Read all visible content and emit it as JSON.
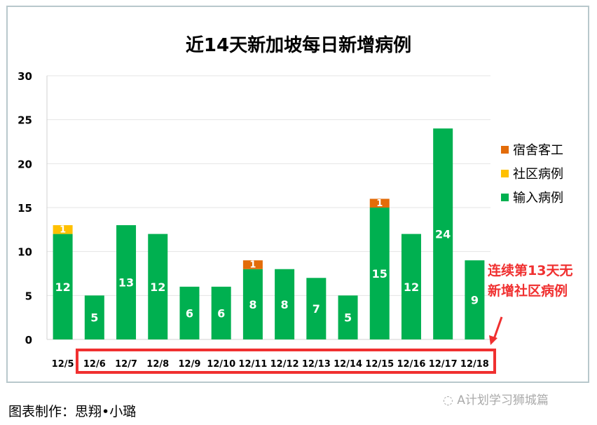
{
  "chart_data": {
    "type": "bar",
    "stacked": true,
    "title": "近14天新加坡每日新增病例",
    "categories": [
      "12/5",
      "12/6",
      "12/7",
      "12/8",
      "12/9",
      "12/10",
      "12/11",
      "12/12",
      "12/13",
      "12/14",
      "12/15",
      "12/16",
      "12/17",
      "12/18"
    ],
    "series": [
      {
        "name": "输入病例",
        "color": "#00b050",
        "values": [
          12,
          5,
          13,
          12,
          6,
          6,
          8,
          8,
          7,
          5,
          15,
          12,
          24,
          9
        ]
      },
      {
        "name": "社区病例",
        "color": "#ffc000",
        "values": [
          1,
          0,
          0,
          0,
          0,
          0,
          0,
          0,
          0,
          0,
          0,
          0,
          0,
          0
        ]
      },
      {
        "name": "宿舍客工",
        "color": "#e36c09",
        "values": [
          0,
          0,
          0,
          0,
          0,
          0,
          1,
          0,
          0,
          0,
          1,
          0,
          0,
          0
        ]
      }
    ],
    "ylim": [
      0,
      30
    ],
    "yticks": [
      0,
      5,
      10,
      15,
      20,
      25,
      30
    ],
    "grid": true,
    "legend": "right",
    "annotation": [
      "连续第13天无",
      "新增社区病例"
    ],
    "highlight_color": "#f03030"
  },
  "footer": {
    "credit": "图表制作：思翔•小璐",
    "watermark": "A计划学习狮城篇"
  }
}
